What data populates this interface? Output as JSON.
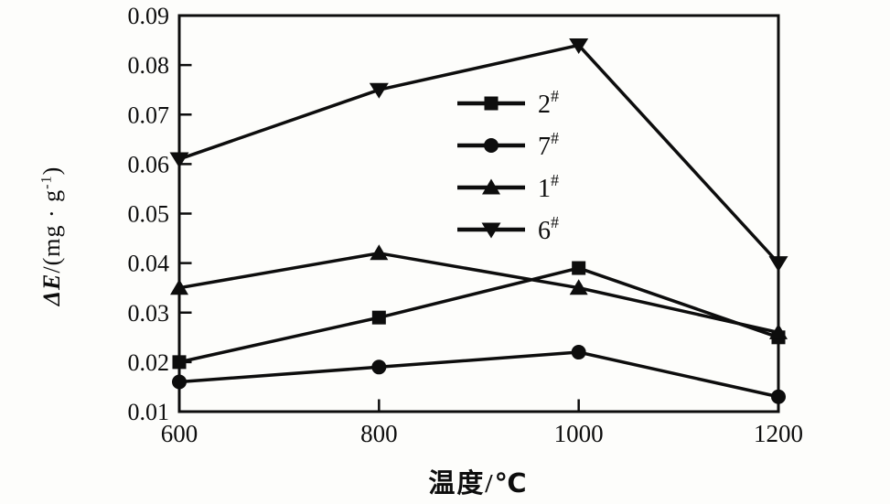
{
  "figure": {
    "background": "#fdfdfb",
    "ink": "#0d0d0d"
  },
  "chart_data": {
    "type": "line",
    "title": "",
    "xlabel": "温度/℃",
    "ylabel": "ΔE/(mg·g⁻¹)",
    "ylabel_parts": {
      "var": "ΔE",
      "mid": "/(mg · g",
      "sup": "-1",
      "end": ")"
    },
    "x": [
      600,
      800,
      1000,
      1200
    ],
    "xlim": [
      600,
      1200
    ],
    "ylim": [
      0.01,
      0.09
    ],
    "x_tick_labels": [
      "600",
      "800",
      "1000",
      "1200"
    ],
    "y_tick_labels": [
      "0.01",
      "0.02",
      "0.03",
      "0.04",
      "0.05",
      "0.06",
      "0.07",
      "0.08",
      "0.09"
    ],
    "grid": false,
    "legend": {
      "position": "inside-top-center",
      "items": [
        {
          "base": "2",
          "sup": "#",
          "marker": "square"
        },
        {
          "base": "7",
          "sup": "#",
          "marker": "circle"
        },
        {
          "base": "1",
          "sup": "#",
          "marker": "triangle-up"
        },
        {
          "base": "6",
          "sup": "#",
          "marker": "triangle-down"
        }
      ]
    },
    "series": [
      {
        "name": "2#",
        "marker": "square",
        "color": "#0d0d0d",
        "values": [
          0.02,
          0.029,
          0.039,
          0.025
        ]
      },
      {
        "name": "7#",
        "marker": "circle",
        "color": "#0d0d0d",
        "values": [
          0.016,
          0.019,
          0.022,
          0.013
        ]
      },
      {
        "name": "1#",
        "marker": "triangle-up",
        "color": "#0d0d0d",
        "values": [
          0.035,
          0.042,
          0.035,
          0.026
        ]
      },
      {
        "name": "6#",
        "marker": "triangle-down",
        "color": "#0d0d0d",
        "values": [
          0.061,
          0.075,
          0.084,
          0.04
        ]
      }
    ]
  }
}
